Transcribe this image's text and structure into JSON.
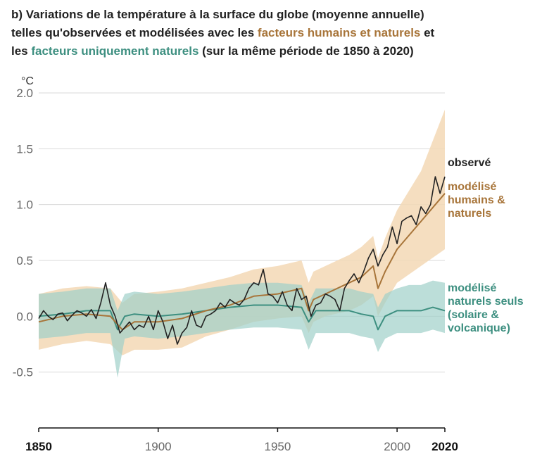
{
  "title": {
    "line1": "b) Variations de la température à la surface du globe (moyenne annuelle)",
    "line2_a": "telles qu'observées et modélisées avec les ",
    "line2_b": "facteurs humains et naturels",
    "line2_c": " et",
    "line3_a": "les ",
    "line3_b": "facteurs uniquement naturels",
    "line3_c": " (sur la même période de 1850 à 2020)"
  },
  "chart_data": {
    "type": "line",
    "ylabel": "°C",
    "xlim": [
      1850,
      2020
    ],
    "ylim": [
      -1.0,
      2.0
    ],
    "yticks": [
      2.0,
      1.5,
      1.0,
      0.5,
      0.0,
      -0.5
    ],
    "ytick_labels": [
      "2.0",
      "1.5",
      "1.0",
      "0.5",
      "0.0",
      "-0.5"
    ],
    "xticks": [
      1850,
      1900,
      1950,
      2000,
      2020
    ],
    "xtick_labels": [
      "1850",
      "1900",
      "1950",
      "2000",
      "2020"
    ],
    "grid": true,
    "colors": {
      "observed": "#222222",
      "human_natural": "#a8753a",
      "human_natural_band": "#f3d8b5",
      "natural": "#3d8f80",
      "natural_band": "#9fd0c9"
    },
    "labels": {
      "observed": "observé",
      "human_natural": [
        "modélisé",
        "humains &",
        "naturels"
      ],
      "natural": [
        "modélisé",
        "naturels seuls",
        "(solaire &",
        "volcanique)"
      ]
    },
    "series": [
      {
        "key": "observed",
        "x": [
          1850,
          1852,
          1854,
          1856,
          1858,
          1860,
          1862,
          1864,
          1866,
          1868,
          1870,
          1872,
          1874,
          1876,
          1878,
          1880,
          1882,
          1884,
          1886,
          1888,
          1890,
          1892,
          1894,
          1896,
          1898,
          1900,
          1902,
          1904,
          1906,
          1908,
          1910,
          1912,
          1914,
          1916,
          1918,
          1920,
          1922,
          1924,
          1926,
          1928,
          1930,
          1932,
          1934,
          1936,
          1938,
          1940,
          1942,
          1944,
          1946,
          1948,
          1950,
          1952,
          1954,
          1956,
          1958,
          1960,
          1962,
          1964,
          1966,
          1968,
          1970,
          1972,
          1974,
          1976,
          1978,
          1980,
          1982,
          1984,
          1986,
          1988,
          1990,
          1992,
          1994,
          1996,
          1998,
          2000,
          2002,
          2004,
          2006,
          2008,
          2010,
          2012,
          2014,
          2016,
          2018,
          2020
        ],
        "values": [
          -0.02,
          0.05,
          0.0,
          -0.03,
          0.02,
          0.03,
          -0.04,
          0.01,
          0.05,
          0.03,
          0.0,
          0.06,
          -0.02,
          0.12,
          0.3,
          0.1,
          0.0,
          -0.15,
          -0.1,
          -0.05,
          -0.12,
          -0.08,
          -0.1,
          0.0,
          -0.12,
          0.05,
          -0.05,
          -0.2,
          -0.08,
          -0.25,
          -0.15,
          -0.1,
          0.05,
          -0.08,
          -0.1,
          0.0,
          0.02,
          0.05,
          0.12,
          0.08,
          0.15,
          0.12,
          0.1,
          0.15,
          0.25,
          0.3,
          0.28,
          0.42,
          0.2,
          0.18,
          0.12,
          0.22,
          0.1,
          0.05,
          0.25,
          0.15,
          0.18,
          0.0,
          0.1,
          0.12,
          0.2,
          0.18,
          0.15,
          0.05,
          0.25,
          0.32,
          0.38,
          0.3,
          0.4,
          0.52,
          0.6,
          0.45,
          0.55,
          0.62,
          0.8,
          0.65,
          0.85,
          0.88,
          0.9,
          0.82,
          0.98,
          0.92,
          1.0,
          1.25,
          1.1,
          1.25
        ]
      },
      {
        "key": "human_natural",
        "x": [
          1850,
          1860,
          1870,
          1880,
          1885,
          1890,
          1900,
          1910,
          1920,
          1930,
          1940,
          1950,
          1960,
          1963,
          1965,
          1970,
          1980,
          1985,
          1990,
          1992,
          1995,
          2000,
          2010,
          2020
        ],
        "values": [
          -0.05,
          0.0,
          0.02,
          0.0,
          -0.12,
          -0.05,
          -0.05,
          -0.02,
          0.05,
          0.1,
          0.18,
          0.2,
          0.25,
          0.05,
          0.15,
          0.2,
          0.3,
          0.35,
          0.45,
          0.25,
          0.4,
          0.6,
          0.85,
          1.1
        ],
        "band_low": [
          -0.3,
          -0.25,
          -0.22,
          -0.25,
          -0.35,
          -0.3,
          -0.3,
          -0.28,
          -0.18,
          -0.12,
          -0.05,
          -0.02,
          0.0,
          -0.15,
          -0.05,
          0.0,
          0.05,
          0.1,
          0.18,
          0.0,
          0.12,
          0.3,
          0.45,
          0.6
        ],
        "band_high": [
          0.2,
          0.25,
          0.27,
          0.25,
          0.12,
          0.2,
          0.22,
          0.25,
          0.3,
          0.35,
          0.42,
          0.45,
          0.5,
          0.3,
          0.4,
          0.45,
          0.55,
          0.62,
          0.72,
          0.52,
          0.7,
          0.95,
          1.3,
          1.85
        ]
      },
      {
        "key": "natural",
        "x": [
          1850,
          1860,
          1870,
          1880,
          1883,
          1886,
          1890,
          1900,
          1910,
          1920,
          1930,
          1940,
          1950,
          1960,
          1963,
          1966,
          1970,
          1980,
          1985,
          1990,
          1992,
          1995,
          2000,
          2005,
          2010,
          2015,
          2020
        ],
        "values": [
          0.0,
          0.02,
          0.05,
          0.05,
          -0.12,
          0.0,
          0.02,
          0.0,
          0.02,
          0.05,
          0.08,
          0.1,
          0.1,
          0.08,
          -0.05,
          0.05,
          0.05,
          0.05,
          0.02,
          0.0,
          -0.12,
          0.0,
          0.05,
          0.05,
          0.05,
          0.08,
          0.05
        ],
        "band_low": [
          -0.2,
          -0.18,
          -0.15,
          -0.15,
          -0.55,
          -0.2,
          -0.18,
          -0.2,
          -0.18,
          -0.15,
          -0.12,
          -0.1,
          -0.1,
          -0.12,
          -0.3,
          -0.15,
          -0.15,
          -0.15,
          -0.18,
          -0.2,
          -0.32,
          -0.2,
          -0.15,
          -0.15,
          -0.15,
          -0.12,
          -0.15
        ],
        "band_high": [
          0.2,
          0.22,
          0.25,
          0.25,
          0.05,
          0.2,
          0.22,
          0.2,
          0.22,
          0.25,
          0.28,
          0.3,
          0.3,
          0.28,
          0.12,
          0.25,
          0.25,
          0.25,
          0.22,
          0.2,
          0.08,
          0.2,
          0.25,
          0.28,
          0.28,
          0.32,
          0.3
        ]
      }
    ]
  }
}
